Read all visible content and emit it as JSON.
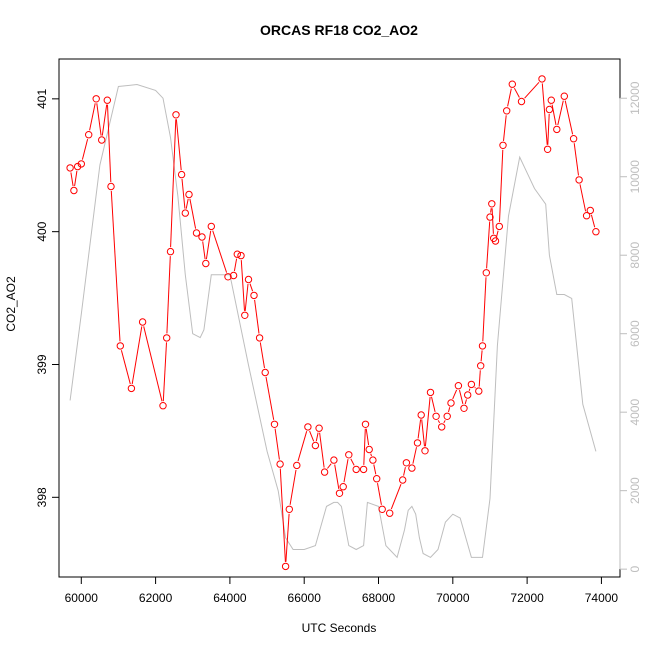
{
  "chart_data": {
    "type": "line",
    "title": "ORCAS RF18 CO2_AO2",
    "xlabel": "UTC Seconds",
    "ylabel": "CO2_AO2",
    "xlim": [
      59400,
      74500
    ],
    "ylim": [
      397.4,
      401.3
    ],
    "y2lim": [
      -200,
      13000
    ],
    "x_ticks": [
      60000,
      62000,
      64000,
      66000,
      68000,
      70000,
      72000,
      74000
    ],
    "y_ticks": [
      398,
      399,
      400,
      401
    ],
    "y2_ticks": [
      0,
      2000,
      4000,
      6000,
      8000,
      10000,
      12000
    ],
    "colors": {
      "co2": "#ff0000",
      "altitude": "#bebebe",
      "axes": "#000000"
    },
    "series": [
      {
        "axis": "left",
        "style": "line-with-circle-markers",
        "x": [
          59700,
          59800,
          59900,
          60000,
          60200,
          60400,
          60550,
          60700,
          60800,
          61050,
          61350,
          61650,
          62200,
          62300,
          62400,
          62550,
          62700,
          62800,
          62900,
          63100,
          63250,
          63350,
          63500,
          63950,
          64100,
          64200,
          64300,
          64400,
          64500,
          64650,
          64800,
          64950,
          65200,
          65350,
          65500,
          65600,
          65800,
          66100,
          66300,
          66400,
          66550,
          66800,
          66950,
          67050,
          67200,
          67400,
          67600,
          67650,
          67750,
          67850,
          67950,
          68100,
          68300,
          68650,
          68750,
          68900,
          69050,
          69150,
          69250,
          69400,
          69550,
          69700,
          69850,
          69950,
          70150,
          70300,
          70400,
          70500,
          70700,
          70750,
          70800,
          70900,
          71000,
          71050,
          71100,
          71150,
          71250,
          71350,
          71450,
          71600,
          71850,
          72400,
          72550,
          72600,
          72650,
          72800,
          73000,
          73250,
          73400,
          73600,
          73700,
          73850
        ],
        "y": [
          400.48,
          400.31,
          400.49,
          400.51,
          400.73,
          401.0,
          400.69,
          400.99,
          400.34,
          399.14,
          398.82,
          399.32,
          398.69,
          399.2,
          399.85,
          400.88,
          400.43,
          400.14,
          400.28,
          399.99,
          399.96,
          399.76,
          400.04,
          399.66,
          399.67,
          399.83,
          399.82,
          399.37,
          399.64,
          399.52,
          399.2,
          398.94,
          398.55,
          398.25,
          397.48,
          397.91,
          398.24,
          398.53,
          398.39,
          398.52,
          398.19,
          398.28,
          398.03,
          398.08,
          398.32,
          398.21,
          398.21,
          398.55,
          398.36,
          398.28,
          398.14,
          397.91,
          397.88,
          398.13,
          398.26,
          398.22,
          398.41,
          398.62,
          398.35,
          398.79,
          398.61,
          398.53,
          398.61,
          398.71,
          398.84,
          398.67,
          398.77,
          398.85,
          398.8,
          398.99,
          399.14,
          399.69,
          400.11,
          400.21,
          399.95,
          399.93,
          400.04,
          400.65,
          400.91,
          401.11,
          400.98,
          401.15,
          400.62,
          400.92,
          400.99,
          400.77,
          401.02,
          400.7,
          400.39,
          400.12,
          400.16,
          400.0
        ]
      },
      {
        "axis": "right",
        "style": "line",
        "x": [
          59700,
          60000,
          60500,
          61000,
          61500,
          62000,
          62200,
          62400,
          62600,
          62800,
          63000,
          63200,
          63300,
          63500,
          63900,
          64000,
          64500,
          65000,
          65300,
          65500,
          65700,
          66000,
          66300,
          66600,
          66800,
          66900,
          67000,
          67200,
          67400,
          67600,
          67700,
          68000,
          68200,
          68500,
          68700,
          68800,
          68900,
          69000,
          69100,
          69200,
          69400,
          69600,
          69800,
          70000,
          70200,
          70500,
          70800,
          71000,
          71200,
          71500,
          71800,
          72000,
          72200,
          72500,
          72600,
          72800,
          73000,
          73200,
          73500,
          73850
        ],
        "y": [
          4300,
          6500,
          10300,
          12300,
          12350,
          12200,
          12000,
          11000,
          9500,
          7500,
          6000,
          5900,
          6100,
          7500,
          7500,
          7500,
          5200,
          3000,
          2000,
          800,
          500,
          500,
          600,
          1600,
          1700,
          1700,
          1600,
          600,
          500,
          600,
          1700,
          1600,
          600,
          300,
          1000,
          1500,
          1600,
          1400,
          800,
          400,
          300,
          500,
          1200,
          1400,
          1300,
          300,
          300,
          1800,
          5700,
          9000,
          10500,
          10100,
          9700,
          9300,
          8000,
          7000,
          7000,
          6900,
          4200,
          3000
        ]
      }
    ]
  }
}
